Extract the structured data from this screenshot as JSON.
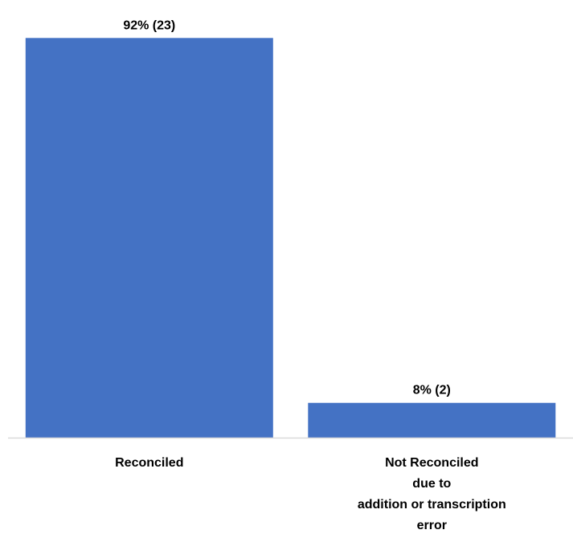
{
  "chart_data": {
    "type": "bar",
    "title": "",
    "xlabel": "",
    "ylabel": "",
    "categories": [
      [
        "Reconciled"
      ],
      [
        "Not Reconciled",
        "due to",
        "addition or transcription",
        "error"
      ]
    ],
    "values": [
      92,
      8
    ],
    "data_labels": [
      "92% (23)",
      "8% (2)"
    ],
    "ylim": [
      0,
      100
    ],
    "bar_color": "#4472C4",
    "axis_color": "#D9D9D9",
    "grid": false,
    "legend": "none"
  }
}
